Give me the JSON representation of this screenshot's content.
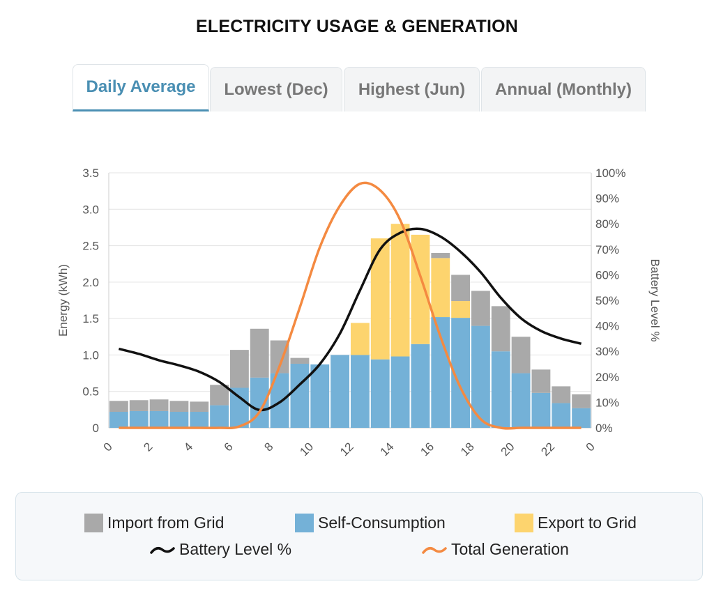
{
  "title": "ELECTRICITY USAGE & GENERATION",
  "tabs": [
    {
      "label": "Daily Average",
      "active": true
    },
    {
      "label": "Lowest (Dec)",
      "active": false
    },
    {
      "label": "Highest (Jun)",
      "active": false
    },
    {
      "label": "Annual (Monthly)",
      "active": false
    }
  ],
  "colors": {
    "import": "#a9a9a9",
    "self": "#74b1d7",
    "export": "#fdd46e",
    "battery": "#111111",
    "generation": "#f48a41",
    "accent": "#4a8fb3"
  },
  "legend": {
    "import": "Import from Grid",
    "self": "Self-Consumption",
    "export": "Export to Grid",
    "battery": "Battery Level %",
    "generation": "Total Generation"
  },
  "chart_data": {
    "type": "bar",
    "stacked": true,
    "xlabel": "",
    "ylabel": "Energy (kWh)",
    "y2label": "Battery Level %",
    "ylim": [
      0,
      3.5
    ],
    "y2lim": [
      0,
      100
    ],
    "yticks": [
      "0",
      "0.5",
      "1.0",
      "1.5",
      "2.0",
      "2.5",
      "3.0",
      "3.5"
    ],
    "y2ticks": [
      "0%",
      "10%",
      "20%",
      "30%",
      "40%",
      "50%",
      "60%",
      "70%",
      "80%",
      "90%",
      "100%"
    ],
    "xticks": [
      "0",
      "2",
      "4",
      "6",
      "8",
      "10",
      "12",
      "14",
      "16",
      "18",
      "20",
      "22",
      "0"
    ],
    "hours": [
      0,
      1,
      2,
      3,
      4,
      5,
      6,
      7,
      8,
      9,
      10,
      11,
      12,
      13,
      14,
      15,
      16,
      17,
      18,
      19,
      20,
      21,
      22,
      23
    ],
    "series": [
      {
        "name": "Self-Consumption",
        "values": [
          0.22,
          0.23,
          0.23,
          0.22,
          0.22,
          0.31,
          0.55,
          0.69,
          0.75,
          0.88,
          0.87,
          1.0,
          1.0,
          0.94,
          0.98,
          1.15,
          1.52,
          1.51,
          1.4,
          1.05,
          0.75,
          0.48,
          0.34,
          0.27
        ]
      },
      {
        "name": "Export to Grid",
        "values": [
          0,
          0,
          0,
          0,
          0,
          0,
          0,
          0,
          0,
          0,
          0,
          0,
          0.44,
          1.66,
          1.82,
          1.5,
          0.81,
          0.23,
          0,
          0,
          0,
          0,
          0,
          0
        ]
      },
      {
        "name": "Import from Grid",
        "values": [
          0.15,
          0.15,
          0.16,
          0.15,
          0.14,
          0.28,
          0.52,
          0.67,
          0.45,
          0.08,
          0,
          0,
          0,
          0,
          0,
          0,
          0.07,
          0.36,
          0.48,
          0.62,
          0.5,
          0.32,
          0.23,
          0.19
        ]
      }
    ],
    "battery_level": {
      "name": "Battery Level %",
      "x": [
        0,
        1,
        2,
        3,
        4,
        5,
        6,
        7,
        8,
        9,
        10,
        11,
        12,
        13,
        14,
        15,
        16,
        17,
        18,
        19,
        20,
        21,
        22,
        23
      ],
      "values": [
        31,
        29,
        26.5,
        24.5,
        22,
        18,
        12,
        7,
        10,
        17,
        25,
        37,
        54,
        70,
        76.5,
        78,
        75,
        69,
        61,
        51,
        43,
        38,
        35,
        33
      ]
    },
    "total_generation": {
      "name": "Total Generation",
      "x": [
        0,
        1,
        2,
        3,
        4,
        5,
        6,
        7,
        8,
        9,
        10,
        11,
        12,
        13,
        14,
        15,
        16,
        17,
        18,
        19,
        20,
        21,
        22,
        23
      ],
      "values": [
        0,
        0,
        0,
        0,
        0,
        0,
        0.02,
        0.22,
        0.85,
        1.65,
        2.48,
        3.05,
        3.35,
        3.26,
        2.85,
        2.08,
        1.25,
        0.55,
        0.12,
        0,
        0,
        0,
        0,
        0
      ]
    },
    "grid": true
  }
}
